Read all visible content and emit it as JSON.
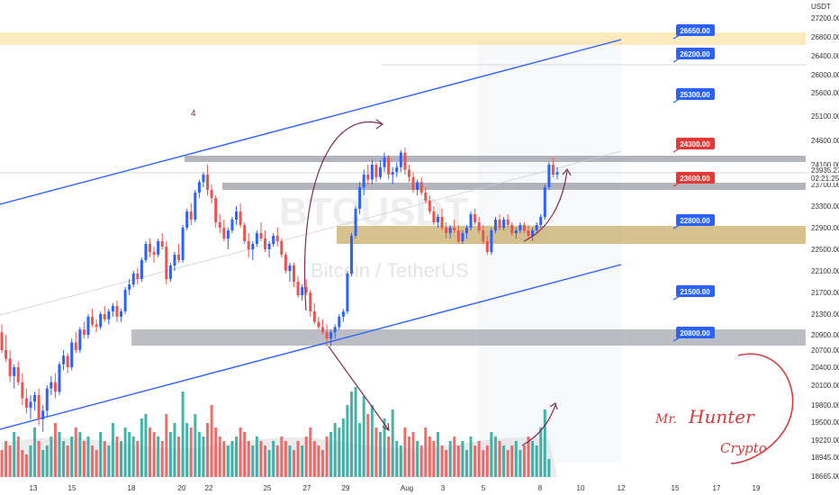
{
  "chart_data": {
    "type": "candlestick",
    "symbol_watermark": "BTCUSDT",
    "watermark_subtitle": "Bitcoin / TetherUS",
    "currency": "USDT",
    "annotation": "4",
    "signature": [
      "Mr.",
      "Hunter",
      "Crypto"
    ],
    "price_axis": [
      27200,
      26800,
      26400,
      26000,
      25600,
      25100,
      24600,
      24100,
      23700,
      23300,
      22900,
      22500,
      22100,
      21700,
      21300,
      20900,
      20700,
      20400,
      20100,
      19800,
      19500,
      19220,
      18945,
      18665
    ],
    "current_price": "23935.27",
    "countdown": "02:21:25",
    "time_axis": [
      "13",
      "15",
      "18",
      "20",
      "22",
      "25",
      "27",
      "29",
      "Aug",
      "3",
      "5",
      "8",
      "10",
      "12",
      "15",
      "17",
      "19"
    ],
    "levels": [
      {
        "price": "26650.00",
        "color": "#2962ff"
      },
      {
        "price": "26200.00",
        "color": "#2962ff"
      },
      {
        "price": "25300.00",
        "color": "#2962ff"
      },
      {
        "price": "24300.00",
        "color": "#e53935"
      },
      {
        "price": "23600.00",
        "color": "#e53935"
      },
      {
        "price": "22800.00",
        "color": "#2962ff"
      },
      {
        "price": "21500.00",
        "color": "#2962ff"
      },
      {
        "price": "20800.00",
        "color": "#2962ff"
      }
    ],
    "colors": {
      "up": "#2962ff",
      "down": "#ef5350",
      "vol_up": "#26a69a",
      "vol_down": "#ef5350",
      "channel": "#2962ff",
      "zone_grey": "#9fa3ab",
      "zone_gold": "#c8ac6a",
      "zone_top": "#f9d98a",
      "arrow": "#7b2d5a"
    },
    "ohlc": [
      [
        20950,
        21100,
        20650,
        20700
      ],
      [
        20700,
        20900,
        20500,
        20550
      ],
      [
        20550,
        20700,
        20150,
        20250
      ],
      [
        20250,
        20450,
        20050,
        20400
      ],
      [
        20400,
        20500,
        20100,
        20150
      ],
      [
        20150,
        20300,
        19800,
        19900
      ],
      [
        19900,
        20050,
        19650,
        19750
      ],
      [
        19750,
        19950,
        19550,
        19850
      ],
      [
        19850,
        20000,
        19700,
        19950
      ],
      [
        19950,
        20050,
        19450,
        19550
      ],
      [
        19550,
        19800,
        19350,
        19700
      ],
      [
        19700,
        20100,
        19600,
        20050
      ],
      [
        20050,
        20250,
        19950,
        20150
      ],
      [
        20150,
        20300,
        19900,
        20000
      ],
      [
        20000,
        20500,
        19950,
        20450
      ],
      [
        20450,
        20700,
        20350,
        20600
      ],
      [
        20600,
        20650,
        20300,
        20400
      ],
      [
        20400,
        20850,
        20350,
        20800
      ],
      [
        20800,
        20950,
        20650,
        20700
      ],
      [
        20700,
        21050,
        20650,
        21000
      ],
      [
        21000,
        21150,
        20850,
        20900
      ],
      [
        20900,
        21300,
        20850,
        21250
      ],
      [
        21250,
        21400,
        21050,
        21100
      ],
      [
        21100,
        21200,
        20950,
        21050
      ],
      [
        21050,
        21350,
        21000,
        21300
      ],
      [
        21300,
        21450,
        21150,
        21200
      ],
      [
        21200,
        21400,
        21100,
        21350
      ],
      [
        21350,
        21500,
        21250,
        21450
      ],
      [
        21450,
        21550,
        21150,
        21250
      ],
      [
        21250,
        21400,
        21150,
        21350
      ],
      [
        21350,
        21800,
        21300,
        21750
      ],
      [
        21750,
        21950,
        21650,
        21850
      ],
      [
        21850,
        22100,
        21800,
        22050
      ],
      [
        22050,
        22150,
        21850,
        21950
      ],
      [
        21950,
        22350,
        21900,
        22300
      ],
      [
        22300,
        22650,
        22250,
        22600
      ],
      [
        22600,
        22700,
        22350,
        22450
      ],
      [
        22450,
        22550,
        22250,
        22400
      ],
      [
        22400,
        22700,
        22350,
        22650
      ],
      [
        22650,
        22800,
        22500,
        22550
      ],
      [
        22550,
        22650,
        21850,
        21950
      ],
      [
        21950,
        22250,
        21900,
        22200
      ],
      [
        22200,
        22450,
        22100,
        22400
      ],
      [
        22400,
        22600,
        22250,
        22300
      ],
      [
        22300,
        22950,
        22250,
        22900
      ],
      [
        22900,
        23250,
        22850,
        23200
      ],
      [
        23200,
        23350,
        22950,
        23050
      ],
      [
        23050,
        23600,
        23000,
        23550
      ],
      [
        23550,
        23800,
        23450,
        23750
      ],
      [
        23750,
        23950,
        23650,
        23900
      ],
      [
        23900,
        24100,
        23500,
        23600
      ],
      [
        23600,
        23700,
        23350,
        23450
      ],
      [
        23450,
        23500,
        22900,
        23000
      ],
      [
        23000,
        23150,
        22800,
        22900
      ],
      [
        22900,
        23050,
        22650,
        22700
      ],
      [
        22700,
        22900,
        22500,
        22850
      ],
      [
        22850,
        23100,
        22800,
        23050
      ],
      [
        23050,
        23300,
        22950,
        23200
      ],
      [
        23200,
        23350,
        22900,
        22950
      ],
      [
        22950,
        23000,
        22600,
        22650
      ],
      [
        22650,
        22800,
        22350,
        22500
      ],
      [
        22500,
        22650,
        22300,
        22600
      ],
      [
        22600,
        22850,
        22550,
        22800
      ],
      [
        22800,
        23000,
        22650,
        22700
      ],
      [
        22700,
        22850,
        22450,
        22500
      ],
      [
        22500,
        22650,
        22350,
        22600
      ],
      [
        22600,
        22800,
        22550,
        22750
      ],
      [
        22750,
        22900,
        22550,
        22650
      ],
      [
        22650,
        22700,
        22350,
        22400
      ],
      [
        22400,
        22450,
        22050,
        22100
      ],
      [
        22100,
        22250,
        21900,
        22200
      ],
      [
        22200,
        22250,
        21800,
        21900
      ],
      [
        21900,
        22000,
        21600,
        21650
      ],
      [
        21650,
        21850,
        21550,
        21800
      ],
      [
        21800,
        21950,
        21650,
        21700
      ],
      [
        21700,
        21750,
        21250,
        21350
      ],
      [
        21350,
        21500,
        21100,
        21150
      ],
      [
        21150,
        21250,
        21000,
        21050
      ],
      [
        21050,
        21200,
        20900,
        20950
      ],
      [
        20950,
        21100,
        20750,
        20850
      ],
      [
        20850,
        21000,
        20750,
        20950
      ],
      [
        20950,
        21100,
        20850,
        21050
      ],
      [
        21050,
        21300,
        21000,
        21250
      ],
      [
        21250,
        21400,
        21150,
        21350
      ],
      [
        21350,
        22100,
        21300,
        22050
      ],
      [
        22050,
        22800,
        22000,
        22750
      ],
      [
        22750,
        23300,
        22700,
        23250
      ],
      [
        23250,
        23750,
        23150,
        23650
      ],
      [
        23650,
        24000,
        23500,
        23900
      ],
      [
        23900,
        24100,
        23700,
        23800
      ],
      [
        23800,
        24200,
        23700,
        24100
      ],
      [
        24100,
        24150,
        23750,
        23850
      ],
      [
        23850,
        24200,
        23800,
        24050
      ],
      [
        24050,
        24350,
        23950,
        24250
      ],
      [
        24250,
        24300,
        23800,
        23900
      ],
      [
        23900,
        24050,
        23700,
        23950
      ],
      [
        23950,
        24150,
        23850,
        24050
      ],
      [
        24050,
        24400,
        23950,
        24350
      ],
      [
        24350,
        24450,
        23900,
        24000
      ],
      [
        24000,
        24100,
        23750,
        23850
      ],
      [
        23850,
        23950,
        23550,
        23600
      ],
      [
        23600,
        23800,
        23500,
        23750
      ],
      [
        23750,
        23850,
        23500,
        23550
      ],
      [
        23550,
        23650,
        23350,
        23400
      ],
      [
        23400,
        23500,
        23150,
        23200
      ],
      [
        23200,
        23300,
        22950,
        23000
      ],
      [
        23000,
        23150,
        22900,
        23100
      ],
      [
        23100,
        23250,
        22850,
        22900
      ],
      [
        22900,
        23000,
        22700,
        22800
      ],
      [
        22800,
        22950,
        22700,
        22900
      ],
      [
        22900,
        23050,
        22800,
        22850
      ],
      [
        22850,
        22950,
        22600,
        22650
      ],
      [
        22650,
        22850,
        22600,
        22800
      ],
      [
        22800,
        22950,
        22700,
        22900
      ],
      [
        22900,
        23200,
        22850,
        23150
      ],
      [
        23150,
        23250,
        22950,
        23000
      ],
      [
        23000,
        23100,
        22800,
        22850
      ],
      [
        22850,
        22950,
        22600,
        22650
      ],
      [
        22650,
        22750,
        22400,
        22450
      ],
      [
        22450,
        22900,
        22400,
        22850
      ],
      [
        22850,
        23100,
        22800,
        23050
      ],
      [
        23050,
        23150,
        22850,
        22900
      ],
      [
        22900,
        23100,
        22850,
        23050
      ],
      [
        23050,
        23150,
        22900,
        22950
      ],
      [
        22950,
        23000,
        22750,
        22800
      ],
      [
        22800,
        22900,
        22700,
        22850
      ],
      [
        22850,
        23000,
        22800,
        22950
      ],
      [
        22950,
        23000,
        22800,
        22850
      ],
      [
        22850,
        22950,
        22700,
        22750
      ],
      [
        22750,
        22900,
        22650,
        22850
      ],
      [
        22850,
        23000,
        22800,
        22950
      ],
      [
        22950,
        23150,
        22900,
        23100
      ],
      [
        23100,
        23700,
        23050,
        23650
      ],
      [
        23650,
        24150,
        23600,
        24100
      ],
      [
        24100,
        24250,
        23850,
        23900
      ],
      [
        23900,
        24050,
        23800,
        23950
      ]
    ],
    "volume": [
      0.3,
      0.4,
      0.35,
      0.5,
      0.45,
      0.3,
      0.25,
      0.35,
      0.55,
      0.4,
      0.3,
      0.35,
      0.45,
      0.6,
      0.5,
      0.4,
      0.35,
      0.45,
      0.55,
      0.5,
      0.4,
      0.45,
      0.35,
      0.3,
      0.5,
      0.4,
      0.35,
      0.6,
      0.45,
      0.4,
      0.55,
      0.5,
      0.45,
      0.4,
      0.65,
      0.7,
      0.55,
      0.5,
      0.45,
      0.4,
      0.7,
      0.5,
      0.6,
      0.45,
      0.95,
      0.6,
      0.55,
      0.7,
      0.5,
      0.45,
      0.6,
      0.8,
      0.55,
      0.45,
      0.4,
      0.35,
      0.4,
      0.45,
      0.55,
      0.5,
      0.4,
      0.35,
      0.45,
      0.4,
      0.35,
      0.3,
      0.4,
      0.35,
      0.45,
      0.4,
      0.35,
      0.3,
      0.4,
      0.35,
      0.45,
      0.55,
      0.4,
      0.35,
      0.3,
      0.45,
      0.5,
      0.6,
      0.55,
      0.65,
      0.8,
      0.95,
      1.0,
      0.6,
      0.9,
      0.7,
      0.8,
      0.55,
      0.5,
      0.65,
      0.45,
      0.75,
      0.4,
      0.35,
      0.55,
      0.45,
      0.5,
      0.4,
      0.35,
      0.55,
      0.45,
      0.4,
      0.5,
      0.35,
      0.3,
      0.4,
      0.45,
      0.35,
      0.4,
      0.3,
      0.45,
      0.35,
      0.4,
      0.3,
      0.35,
      0.5,
      0.45,
      0.4,
      0.35,
      0.3,
      0.35,
      0.4,
      0.3,
      0.35,
      0.45,
      0.4,
      0.35,
      0.55,
      0.75,
      0.2
    ]
  }
}
